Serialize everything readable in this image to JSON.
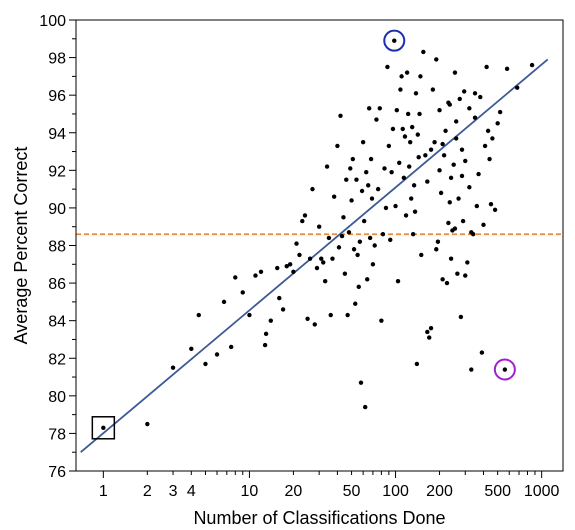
{
  "chart_data": {
    "type": "scatter",
    "xlabel": "Number of Classifications Done",
    "ylabel": "Average Percent Correct",
    "x_scale": "log",
    "xlim": [
      0.65,
      1400
    ],
    "ylim": [
      76,
      100
    ],
    "x_ticks": [
      1,
      2,
      3,
      4,
      10,
      20,
      50,
      100,
      200,
      500,
      1000
    ],
    "y_ticks": [
      76,
      78,
      80,
      82,
      84,
      86,
      88,
      90,
      92,
      94,
      96,
      98,
      100
    ],
    "grid": false,
    "legend": "none",
    "reference_line": {
      "y": 88.6,
      "color": "#ee8833",
      "style": "dashed"
    },
    "trend_line": {
      "x": [
        0.7,
        1100
      ],
      "y": [
        77.0,
        97.9
      ],
      "color": "#3c5a94"
    },
    "highlights": [
      {
        "x": 1,
        "y": 78.3,
        "shape": "square",
        "color": "#000000"
      },
      {
        "x": 98,
        "y": 98.9,
        "shape": "circle",
        "color": "#1a2fb0"
      },
      {
        "x": 560,
        "y": 81.4,
        "shape": "circle",
        "color": "#a020d0"
      }
    ],
    "point_color": "#000000",
    "points": [
      [
        1,
        78.3
      ],
      [
        2,
        78.5
      ],
      [
        3,
        81.5
      ],
      [
        4,
        82.5
      ],
      [
        4.5,
        84.3
      ],
      [
        5,
        81.7
      ],
      [
        6,
        82.2
      ],
      [
        6.7,
        85
      ],
      [
        7.5,
        82.6
      ],
      [
        8,
        86.3
      ],
      [
        9,
        85.5
      ],
      [
        10,
        84.3
      ],
      [
        11,
        86.4
      ],
      [
        12,
        86.6
      ],
      [
        12.8,
        82.7
      ],
      [
        13,
        83.3
      ],
      [
        14,
        84
      ],
      [
        15.5,
        86.8
      ],
      [
        16,
        85.2
      ],
      [
        17,
        84.6
      ],
      [
        18,
        86.9
      ],
      [
        19,
        87
      ],
      [
        20,
        86.6
      ],
      [
        21,
        88.1
      ],
      [
        22,
        87.5
      ],
      [
        23,
        89.3
      ],
      [
        24,
        89.6
      ],
      [
        25,
        84.1
      ],
      [
        26,
        87.3
      ],
      [
        27,
        91
      ],
      [
        28,
        83.8
      ],
      [
        29,
        86.8
      ],
      [
        30,
        89
      ],
      [
        31,
        87.3
      ],
      [
        32,
        87.1
      ],
      [
        33,
        86.1
      ],
      [
        34,
        92.2
      ],
      [
        35,
        88.4
      ],
      [
        36,
        84.3
      ],
      [
        37,
        87.3
      ],
      [
        38,
        90.6
      ],
      [
        40,
        93.3
      ],
      [
        41,
        87.9
      ],
      [
        42,
        94.9
      ],
      [
        43,
        88.5
      ],
      [
        44,
        89.5
      ],
      [
        45,
        86.5
      ],
      [
        46,
        91.5
      ],
      [
        47,
        84.3
      ],
      [
        48,
        88.7
      ],
      [
        49,
        92.1
      ],
      [
        50,
        90.4
      ],
      [
        51,
        92.6
      ],
      [
        52,
        87.8
      ],
      [
        53,
        84.9
      ],
      [
        54,
        91.5
      ],
      [
        55,
        87.5
      ],
      [
        56,
        85.8
      ],
      [
        57,
        88.2
      ],
      [
        58,
        80.7
      ],
      [
        59,
        90.9
      ],
      [
        60,
        93.5
      ],
      [
        61,
        89.3
      ],
      [
        62,
        79.4
      ],
      [
        63,
        91.9
      ],
      [
        64,
        86.2
      ],
      [
        65,
        91.2
      ],
      [
        66,
        95.3
      ],
      [
        67,
        88.4
      ],
      [
        68,
        92.6
      ],
      [
        69,
        90.5
      ],
      [
        70,
        87
      ],
      [
        72,
        88
      ],
      [
        74,
        94.7
      ],
      [
        76,
        91
      ],
      [
        78,
        95.3
      ],
      [
        80,
        84
      ],
      [
        82,
        88.6
      ],
      [
        84,
        92.1
      ],
      [
        86,
        90
      ],
      [
        88,
        97.5
      ],
      [
        90,
        93.3
      ],
      [
        92,
        88.3
      ],
      [
        94,
        91.9
      ],
      [
        96,
        94.2
      ],
      [
        98,
        98.9
      ],
      [
        100,
        90.1
      ],
      [
        102,
        95.2
      ],
      [
        104,
        86.1
      ],
      [
        106,
        92.4
      ],
      [
        108,
        96.3
      ],
      [
        110,
        97
      ],
      [
        112,
        94.2
      ],
      [
        114,
        91.6
      ],
      [
        116,
        93.8
      ],
      [
        118,
        89.6
      ],
      [
        120,
        97.2
      ],
      [
        122,
        95
      ],
      [
        124,
        92.2
      ],
      [
        126,
        93.5
      ],
      [
        128,
        90.5
      ],
      [
        130,
        94.3
      ],
      [
        132,
        88.6
      ],
      [
        134,
        91.2
      ],
      [
        136,
        89.8
      ],
      [
        138,
        96.1
      ],
      [
        140,
        81.7
      ],
      [
        142,
        93.9
      ],
      [
        144,
        92.7
      ],
      [
        146,
        95
      ],
      [
        148,
        97
      ],
      [
        150,
        87.5
      ],
      [
        155,
        98.3
      ],
      [
        160,
        92.8
      ],
      [
        165,
        91.4
      ],
      [
        170,
        83.1
      ],
      [
        175,
        93.1
      ],
      [
        180,
        96.3
      ],
      [
        185,
        93.5
      ],
      [
        190,
        97.9
      ],
      [
        195,
        88.2
      ],
      [
        200,
        95.2
      ],
      [
        205,
        90.8
      ],
      [
        210,
        86.2
      ],
      [
        215,
        92.8
      ],
      [
        220,
        94.1
      ],
      [
        225,
        86
      ],
      [
        230,
        89.2
      ],
      [
        235,
        95.5
      ],
      [
        240,
        91.6
      ],
      [
        245,
        88.8
      ],
      [
        250,
        92.3
      ],
      [
        255,
        97.2
      ],
      [
        260,
        93.7
      ],
      [
        265,
        86.5
      ],
      [
        270,
        90.5
      ],
      [
        275,
        95.8
      ],
      [
        280,
        84.2
      ],
      [
        285,
        91.7
      ],
      [
        290,
        89.3
      ],
      [
        295,
        96.2
      ],
      [
        300,
        92.5
      ],
      [
        310,
        87.1
      ],
      [
        320,
        95.3
      ],
      [
        330,
        81.4
      ],
      [
        340,
        88.6
      ],
      [
        350,
        94.8
      ],
      [
        360,
        90.1
      ],
      [
        370,
        91.8
      ],
      [
        380,
        95.9
      ],
      [
        390,
        82.3
      ],
      [
        400,
        89.1
      ],
      [
        410,
        93.3
      ],
      [
        420,
        97.5
      ],
      [
        430,
        94.1
      ],
      [
        440,
        92.6
      ],
      [
        450,
        90.2
      ],
      [
        460,
        93.7
      ],
      [
        480,
        89.9
      ],
      [
        500,
        94.5
      ],
      [
        520,
        95.1
      ],
      [
        560,
        81.4
      ],
      [
        580,
        97.4
      ],
      [
        680,
        96.4
      ],
      [
        860,
        97.6
      ],
      [
        165,
        83.4
      ],
      [
        175,
        83.6
      ],
      [
        190,
        87.8
      ],
      [
        210,
        93.4
      ],
      [
        235,
        90.3
      ],
      [
        255,
        88.9
      ],
      [
        285,
        93.1
      ],
      [
        320,
        91.1
      ],
      [
        350,
        96.1
      ],
      [
        260,
        94.6
      ],
      [
        330,
        88.7
      ],
      [
        200,
        92.0
      ],
      [
        230,
        95.6
      ],
      [
        240,
        87.3
      ],
      [
        300,
        86.4
      ]
    ]
  }
}
